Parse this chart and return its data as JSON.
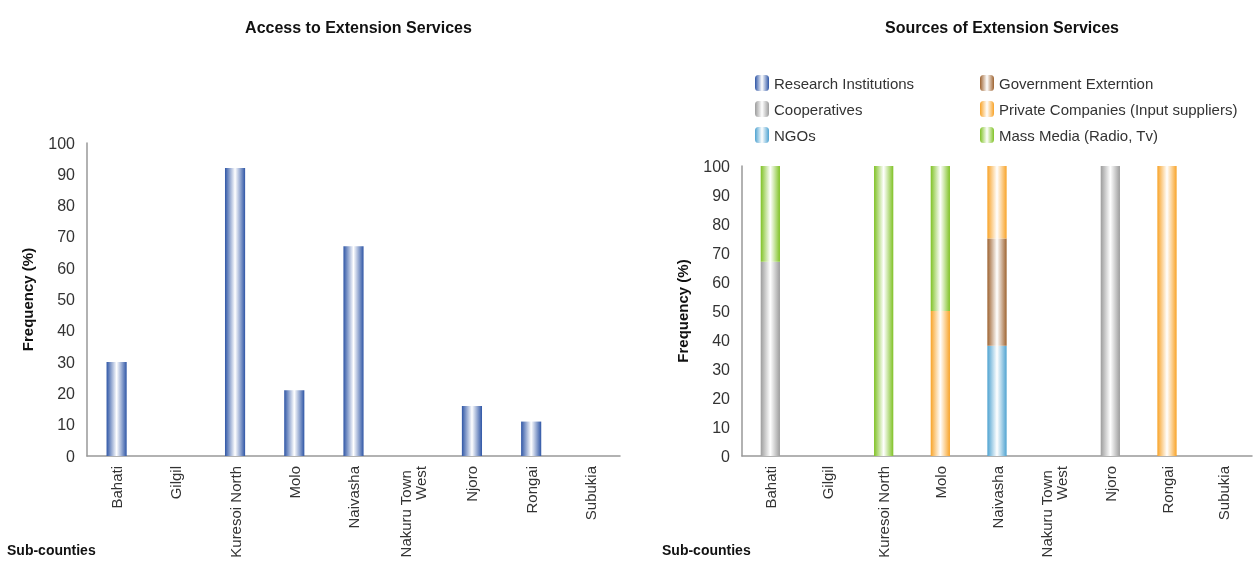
{
  "chart_data": [
    {
      "type": "bar",
      "title": "Access to Extension Services",
      "xlabel": "Sub-counties",
      "ylabel": "Frequency (%)",
      "categories": [
        "Bahati",
        "Gilgil",
        "Kuresoi North",
        "Molo",
        "Naivasha",
        "Nakuru Town West",
        "Njoro",
        "Rongai",
        "Subukia"
      ],
      "series": [
        {
          "color": "#2f56a6",
          "values": [
            30,
            0,
            92,
            21,
            67,
            0,
            16,
            11,
            0
          ]
        }
      ],
      "ylim": [
        0,
        100
      ],
      "yticks": [
        0,
        10,
        20,
        30,
        40,
        50,
        60,
        70,
        80,
        90,
        100
      ]
    },
    {
      "type": "bar",
      "title": "Sources of Extension Services",
      "xlabel": "Sub-counties",
      "ylabel": "Frequency (%)",
      "categories": [
        "Bahati",
        "Gilgil",
        "Kuresoi North",
        "Molo",
        "Naivasha",
        "Nakuru Town West",
        "Njoro",
        "Rongai",
        "Subukia"
      ],
      "stacked": true,
      "legend": "top",
      "series": [
        {
          "name": "Research Institutions",
          "color": "#2f56a6",
          "values": [
            null,
            null,
            null,
            null,
            null,
            null,
            null,
            null,
            null
          ]
        },
        {
          "name": "Cooperatives",
          "color": "#9c9c9c",
          "values": [
            67,
            null,
            null,
            null,
            null,
            null,
            100,
            null,
            null
          ]
        },
        {
          "name": "NGOs",
          "color": "#4fa3d1",
          "values": [
            null,
            null,
            null,
            null,
            38,
            null,
            null,
            null,
            null
          ]
        },
        {
          "name": "Government Externtion",
          "color": "#9e6330",
          "values": [
            null,
            null,
            null,
            null,
            37,
            null,
            null,
            null,
            null
          ]
        },
        {
          "name": "Private Companies (Input suppliers)",
          "color": "#f8a328",
          "values": [
            null,
            null,
            null,
            50,
            25,
            null,
            null,
            100,
            null
          ]
        },
        {
          "name": "Mass Media (Radio, Tv)",
          "color": "#80c226",
          "values": [
            33,
            null,
            100,
            50,
            null,
            null,
            null,
            null,
            null
          ]
        }
      ],
      "ylim": [
        0,
        100
      ],
      "yticks": [
        0,
        10,
        20,
        30,
        40,
        50,
        60,
        70,
        80,
        90,
        100
      ]
    }
  ]
}
